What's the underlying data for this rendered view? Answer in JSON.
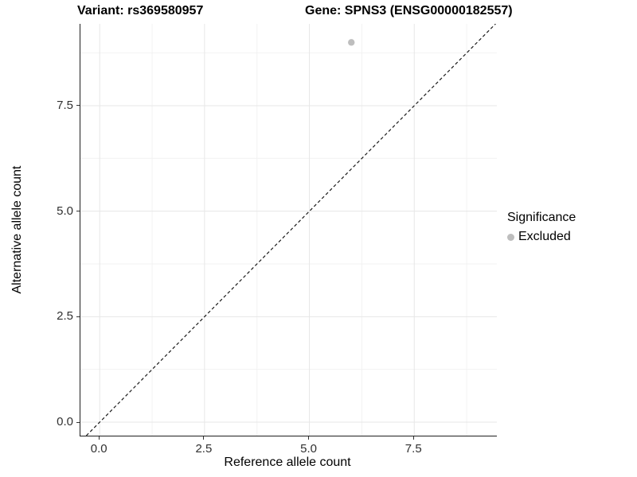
{
  "titles": {
    "variant": "Variant: rs369580957",
    "gene": "Gene: SPNS3 (ENSG00000182557)"
  },
  "axes": {
    "x": {
      "label": "Reference allele count",
      "tick_labels": [
        "0.0",
        "2.5",
        "5.0",
        "7.5"
      ],
      "tick_values": [
        0,
        2.5,
        5,
        7.5
      ],
      "minor_values": [
        1.25,
        3.75,
        6.25,
        8.75
      ]
    },
    "y": {
      "label": "Alternative allele count",
      "tick_labels": [
        "0.0",
        "2.5",
        "5.0",
        "7.5"
      ],
      "tick_values": [
        0,
        2.5,
        5,
        7.5
      ],
      "minor_values": [
        1.25,
        3.75,
        6.25,
        8.75
      ]
    }
  },
  "legend": {
    "title": "Significance",
    "items": [
      {
        "label": "Excluded",
        "color": "#bebebe"
      }
    ]
  },
  "chart_data": {
    "type": "scatter",
    "title": "Variant: rs369580957 | Gene: SPNS3 (ENSG00000182557)",
    "xlabel": "Reference allele count",
    "ylabel": "Alternative allele count",
    "xlim": [
      -0.46,
      9.47
    ],
    "ylim": [
      -0.32,
      9.44
    ],
    "x_ticks": [
      0,
      2.5,
      5,
      7.5
    ],
    "y_ticks": [
      0,
      2.5,
      5,
      7.5
    ],
    "grid": "major+minor",
    "legend_position": "right",
    "series": [
      {
        "name": "Excluded",
        "color": "#bebebe",
        "points": [
          {
            "x": 6,
            "y": 9
          }
        ]
      }
    ],
    "reference_line": {
      "kind": "identity",
      "slope": 1,
      "intercept": 0,
      "style": "dashed",
      "color": "#1a1a1a"
    }
  },
  "colors": {
    "excluded_point": "#bebebe",
    "grid_major": "#e7e7e7",
    "grid_minor": "#f2f2f2",
    "axis_line": "#1f1f1f",
    "tick_text": "#303030"
  }
}
